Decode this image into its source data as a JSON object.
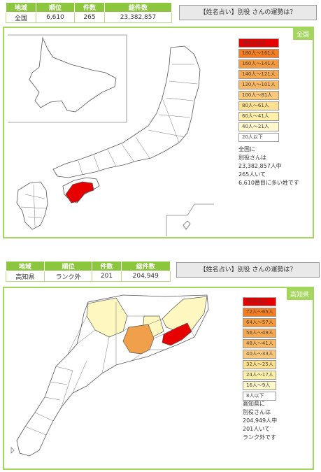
{
  "nation": {
    "table": {
      "headers": [
        "地域",
        "順位",
        "件数",
        "総件数"
      ],
      "row": [
        "全国",
        "6,610",
        "265",
        "23,382,857"
      ]
    },
    "button_label": "【姓名占い】別役 さんの運勢は？",
    "region_tag": "全国",
    "legend": [
      "181人以上",
      "180人～161人",
      "160人～141人",
      "140人～121人",
      "120人～101人",
      "100人～81人",
      "80人～61人",
      "60人～41人",
      "40人～21人",
      "20人以下"
    ],
    "legend_colors": [
      "#e60000",
      "#f57c1f",
      "#f79a3c",
      "#f8a94f",
      "#fab863",
      "#fcc87a",
      "#fde08f",
      "#fef0a8",
      "#fff8cc",
      "#ffffff"
    ],
    "summary": [
      "全国に",
      "別役さんは",
      "23,382,857人中",
      "265人いて",
      "6,610番目に多い姓です"
    ]
  },
  "prefecture": {
    "table": {
      "headers": [
        "地域",
        "順位",
        "件数",
        "総件数"
      ],
      "row": [
        "高知県",
        "ランク外",
        "201",
        "204,949"
      ]
    },
    "button_label": "【姓名占い】別役 さんの運勢は？",
    "region_tag": "高知県",
    "legend": [
      "73人以上",
      "72人～65人",
      "64人～57人",
      "56人～49人",
      "48人～41人",
      "40人～33人",
      "32人～25人",
      "24人～17人",
      "16人～9人",
      "8人以下"
    ],
    "legend_colors": [
      "#e60000",
      "#f57c1f",
      "#f79a3c",
      "#f8a94f",
      "#fab863",
      "#fcc87a",
      "#fde08f",
      "#fef0a8",
      "#fff8cc",
      "#ffffff"
    ],
    "summary": [
      "高知県に",
      "別役さんは",
      "204,949人中",
      "201人いて",
      "ランク外です"
    ]
  },
  "colors": {
    "accent_green": "#a4d65e",
    "header_green": "#8cc63f",
    "highlight_red": "#e60000",
    "highlight_orange": "#f0a04b",
    "highlight_yellow": "#fef7c0"
  }
}
